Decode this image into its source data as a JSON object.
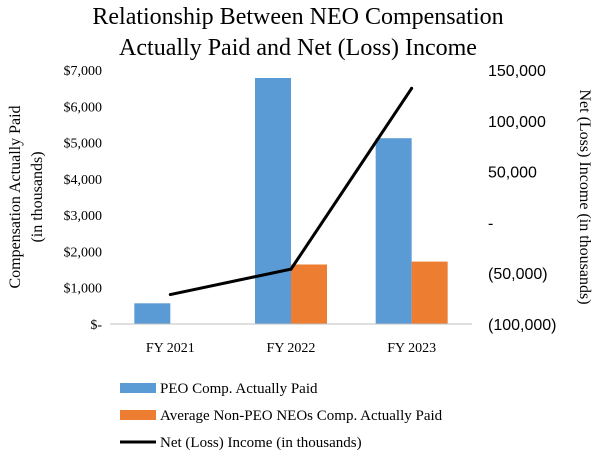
{
  "chart_data": {
    "type": "bar",
    "title": [
      "Relationship Between NEO Compensation",
      "Actually Paid and Net (Loss) Income"
    ],
    "ylabel": [
      "Compensation Actually Paid",
      "(in thousands)"
    ],
    "y2label": "Net (Loss) Income (in thousands)",
    "categories": [
      "FY 2021",
      "FY 2022",
      "FY 2023"
    ],
    "ylim": [
      0,
      7000
    ],
    "y_ticks": [
      0,
      1000,
      2000,
      3000,
      4000,
      5000,
      6000,
      7000
    ],
    "y_tick_labels": [
      "$-",
      "$1,000",
      "$2,000",
      "$3,000",
      "$4,000",
      "$5,000",
      "$6,000",
      "$7,000"
    ],
    "y2lim": [
      -100000,
      150000
    ],
    "y2_ticks": [
      -100000,
      -50000,
      0,
      50000,
      100000,
      150000
    ],
    "y2_tick_labels": [
      "(100,000)",
      "(50,000)",
      "-",
      "50,000",
      "100,000",
      "150,000"
    ],
    "grid": false,
    "legend_position": "bottom",
    "series": [
      {
        "name": "PEO Comp. Actually Paid",
        "type": "bar",
        "axis": "left",
        "color": "#5b9bd5",
        "values": [
          570,
          6780,
          5120
        ]
      },
      {
        "name": "Average Non-PEO NEOs Comp. Actually Paid",
        "type": "bar",
        "axis": "left",
        "color": "#ed7d31",
        "values": [
          0,
          1640,
          1720
        ]
      },
      {
        "name": "Net (Loss) Income (in thousands)",
        "type": "line",
        "axis": "right",
        "color": "#000000",
        "values": [
          -71000,
          -46000,
          132000
        ]
      }
    ]
  }
}
